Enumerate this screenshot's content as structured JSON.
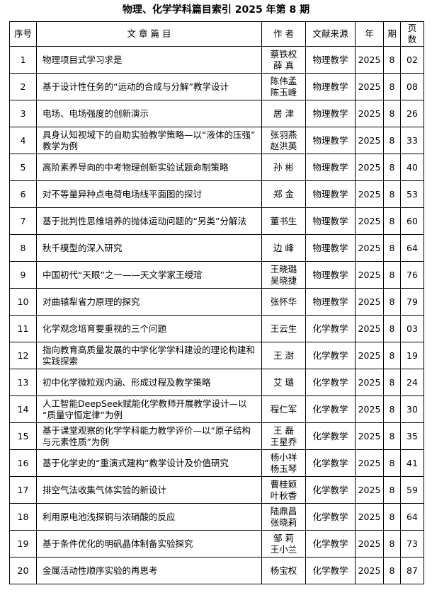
{
  "header": {
    "title": "物理、化学学科篇目索引 2025 年第 8 期"
  },
  "table": {
    "columns": [
      "序号",
      "文 章 篇 目",
      "作 者",
      "文献来源",
      "年",
      "期",
      "页数"
    ],
    "rows": [
      [
        "1",
        "物理项目式学习求是",
        [
          "蔡铁权",
          "薛 真"
        ],
        "物理教学",
        "2025",
        "8",
        "02"
      ],
      [
        "2",
        "基于设计性任务的“运动的合成与分解”教学设计",
        [
          "陈伟孟",
          "陈玉峰"
        ],
        "物理教学",
        "2025",
        "8",
        "08"
      ],
      [
        "3",
        "电场、电场强度的创新演示",
        [
          "居 津"
        ],
        "物理教学",
        "2025",
        "8",
        "26"
      ],
      [
        "4",
        "具身认知视域下的自助实验教学策略—以“液体的压强”教学为例",
        [
          "张羽燕",
          "赵洪英"
        ],
        "物理教学",
        "2025",
        "8",
        "33"
      ],
      [
        "5",
        "高阶素养导向的中考物理创新实验试题命制策略",
        [
          "孙 彬"
        ],
        "物理教学",
        "2025",
        "8",
        "40"
      ],
      [
        "6",
        "对不等量异种点电荷电场线平面图的探讨",
        [
          "郑 金"
        ],
        "物理教学",
        "2025",
        "8",
        "53"
      ],
      [
        "7",
        "基于批判性思维培养的抛体运动问题的“另类”分解法",
        [
          "董书生"
        ],
        "物理教学",
        "2025",
        "8",
        "60"
      ],
      [
        "8",
        "秋千模型的深入研究",
        [
          "边 峰"
        ],
        "物理教学",
        "2025",
        "8",
        "64"
      ],
      [
        "9",
        "中国初代“天眼”之一——天文学家王绶琯",
        [
          "王晓璐",
          "吴晓捷"
        ],
        "物理教学",
        "2025",
        "8",
        "76"
      ],
      [
        "10",
        "对曲辕犁省力原理的探究",
        [
          "张怀华"
        ],
        "物理教学",
        "2025",
        "8",
        "79"
      ],
      [
        "11",
        "化学观念培育要重视的三个问题",
        [
          "王云生"
        ],
        "化学教学",
        "2025",
        "8",
        "03"
      ],
      [
        "12",
        "指向教育高质量发展的中学化学学科建设的理论构建和实践探索",
        [
          "王 澍"
        ],
        "化学教学",
        "2025",
        "8",
        "19"
      ],
      [
        "13",
        "初中化学微粒观内涵、形成过程及教学策略",
        [
          "艾 璐"
        ],
        "化学教学",
        "2025",
        "8",
        "24"
      ],
      [
        "14",
        "人工智能DeepSeek赋能化学教师开展教学设计—以“质量守恒定律”为例",
        [
          "程仁军"
        ],
        "化学教学",
        "2025",
        "8",
        "30"
      ],
      [
        "15",
        "基于课堂观察的化学学科能力教学评价—以“原子结构与元素性质”为例",
        [
          "王 磊",
          "王星乔"
        ],
        "化学教学",
        "2025",
        "8",
        "35"
      ],
      [
        "16",
        "基于化学史的“重演式建构”教学设计及价值研究",
        [
          "杨小祥",
          "杨玉琴"
        ],
        "化学教学",
        "2025",
        "8",
        "41"
      ],
      [
        "17",
        "排空气法收集气体实验的新设计",
        [
          "曹桂颖",
          "叶秋香"
        ],
        "化学教学",
        "2025",
        "8",
        "59"
      ],
      [
        "18",
        "利用原电池浅探铜与浓硝酸的反应",
        [
          "陆鼎昌",
          "张晓莉"
        ],
        "化学教学",
        "2025",
        "8",
        "64"
      ],
      [
        "19",
        "基于条件优化的明矾晶体制备实验探究",
        [
          "邹 莉",
          "王小兰"
        ],
        "化学教学",
        "2025",
        "8",
        "73"
      ],
      [
        "20",
        "金属活动性顺序实验的再思考",
        [
          "杨宝权"
        ],
        "化学教学",
        "2025",
        "8",
        "87"
      ]
    ]
  }
}
